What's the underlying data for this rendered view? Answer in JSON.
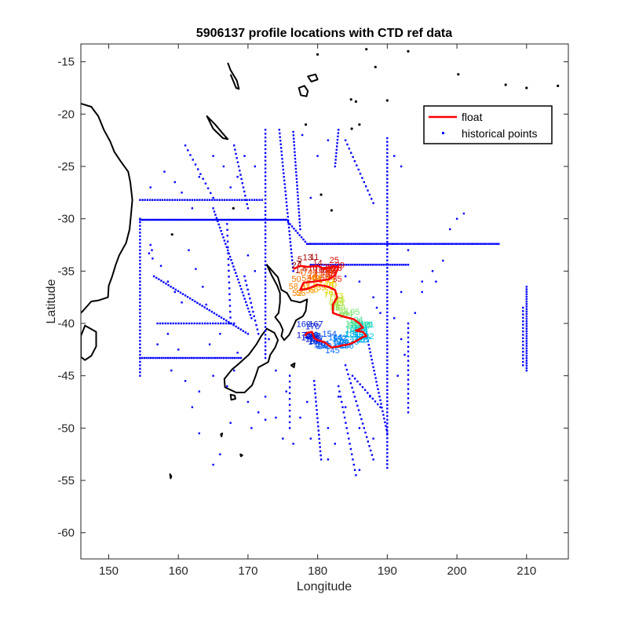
{
  "chart_data": {
    "type": "scatter",
    "title": "5906137 profile locations with CTD ref data",
    "xlabel": "Longitude",
    "ylabel": "Latitude",
    "xlim": [
      146,
      216
    ],
    "ylim": [
      -62.5,
      -13.3
    ],
    "x_ticks": [
      150,
      160,
      170,
      180,
      190,
      200,
      210
    ],
    "y_ticks": [
      -15,
      -20,
      -25,
      -30,
      -35,
      -40,
      -45,
      -50,
      -55,
      -60
    ],
    "grid": false,
    "legend_position": "top-right",
    "colors": {
      "float": "#ff0000",
      "historical": "#0000ff",
      "coast": "#000000"
    },
    "series": [
      {
        "name": "float",
        "style": "line",
        "x": [
          176.5,
          177.5,
          178.5,
          180,
          181,
          182,
          183,
          182.5,
          181.5,
          180.5,
          179.5,
          178,
          177.5,
          178.5,
          180,
          181.5,
          182.5,
          182.8,
          182.2,
          182.2,
          183,
          184,
          185.2,
          186,
          186.5,
          185.5,
          186.5,
          187,
          186.5,
          185.5,
          184.5,
          183.5,
          183,
          182,
          181,
          180,
          179.5,
          179.2,
          178.5,
          178.2
        ],
        "y": [
          -34.8,
          -34.5,
          -34.6,
          -34.5,
          -34.8,
          -34.6,
          -34.6,
          -35.4,
          -35.8,
          -35.9,
          -36,
          -36.1,
          -36.8,
          -36.7,
          -36.3,
          -36.5,
          -36.8,
          -37.5,
          -38.2,
          -39,
          -39.2,
          -39.4,
          -39.6,
          -40,
          -40.4,
          -40.7,
          -40.8,
          -41.2,
          -41.3,
          -41.7,
          -42,
          -42.1,
          -42.2,
          -42.3,
          -41.8,
          -41.6,
          -41.4,
          -40.8,
          -40.9,
          -41.2
        ]
      },
      {
        "name": "historical points",
        "style": "dots",
        "groups": [
          {
            "x0": 154.5,
            "y0": -30.1,
            "x1": 175.5,
            "y1": -30.1,
            "n": 90
          },
          {
            "x0": 175.5,
            "y0": -30.1,
            "x1": 178.5,
            "y1": -32.4,
            "n": 12
          },
          {
            "x0": 178.5,
            "y0": -32.4,
            "x1": 206,
            "y1": -32.4,
            "n": 100
          },
          {
            "x0": 154.5,
            "y0": -28.2,
            "x1": 172,
            "y1": -28.2,
            "n": 50
          },
          {
            "x0": 154.5,
            "y0": -43.3,
            "x1": 169,
            "y1": -43.3,
            "n": 48
          },
          {
            "x0": 157,
            "y0": -40,
            "x1": 168,
            "y1": -40,
            "n": 30
          },
          {
            "x0": 154.5,
            "y0": -30,
            "x1": 154.5,
            "y1": -45,
            "n": 46
          },
          {
            "x0": 172.5,
            "y0": -21.5,
            "x1": 172.5,
            "y1": -43.3,
            "n": 60
          },
          {
            "x0": 190,
            "y0": -22.3,
            "x1": 190,
            "y1": -53.8,
            "n": 90
          },
          {
            "x0": 174.5,
            "y0": -21.5,
            "x1": 176.5,
            "y1": -35,
            "n": 40
          },
          {
            "x0": 176.5,
            "y0": -21.7,
            "x1": 177.5,
            "y1": -31,
            "n": 30
          },
          {
            "x0": 183,
            "y0": -21.5,
            "x1": 182.5,
            "y1": -25,
            "n": 12
          },
          {
            "x0": 184,
            "y0": -22.5,
            "x1": 188,
            "y1": -28.5,
            "n": 16
          },
          {
            "x0": 179,
            "y0": -34.4,
            "x1": 193,
            "y1": -34.4,
            "n": 45
          },
          {
            "x0": 210,
            "y0": -36.5,
            "x1": 210,
            "y1": -44.5,
            "n": 35
          },
          {
            "x0": 209.5,
            "y0": -38.5,
            "x1": 209.5,
            "y1": -44,
            "n": 18
          },
          {
            "x0": 156.5,
            "y0": -35.5,
            "x1": 170,
            "y1": -41,
            "n": 40
          },
          {
            "x0": 165,
            "y0": -29,
            "x1": 170.5,
            "y1": -39.5,
            "n": 35
          },
          {
            "x0": 161,
            "y0": -23,
            "x1": 165,
            "y1": -28,
            "n": 12
          },
          {
            "x0": 168,
            "y0": -23,
            "x1": 170,
            "y1": -29,
            "n": 16
          },
          {
            "x0": 185,
            "y0": -45,
            "x1": 189,
            "y1": -48,
            "n": 12
          },
          {
            "x0": 184,
            "y0": -44,
            "x1": 188,
            "y1": -53,
            "n": 22
          },
          {
            "x0": 187,
            "y0": -41,
            "x1": 190,
            "y1": -50.5,
            "n": 28
          },
          {
            "x0": 183,
            "y0": -46,
            "x1": 185.5,
            "y1": -54.5,
            "n": 18
          },
          {
            "x0": 179.5,
            "y0": -45.5,
            "x1": 180.5,
            "y1": -53,
            "n": 20
          },
          {
            "x0": 176,
            "y0": -45,
            "x1": 176,
            "y1": -50,
            "n": 10
          },
          {
            "x0": 193,
            "y0": -40,
            "x1": 193,
            "y1": -48.5,
            "n": 20
          },
          {
            "x0": 169.5,
            "y0": -35.5,
            "x1": 171.5,
            "y1": -41,
            "n": 14
          },
          {
            "x0": 167,
            "y0": -30.5,
            "x1": 167.5,
            "y1": -40,
            "n": 18
          }
        ],
        "points": [
          [
            156,
            -32.5
          ],
          [
            156.2,
            -33
          ],
          [
            155.8,
            -33.3
          ],
          [
            156.3,
            -33.8
          ],
          [
            157.5,
            -34.5
          ],
          [
            158.5,
            -36
          ],
          [
            159.5,
            -37
          ],
          [
            160.5,
            -38
          ],
          [
            161.5,
            -33
          ],
          [
            162.5,
            -34.8
          ],
          [
            163.5,
            -36.5
          ],
          [
            164,
            -38.2
          ],
          [
            156,
            -27
          ],
          [
            158,
            -25.5
          ],
          [
            159.5,
            -26.5
          ],
          [
            160.5,
            -27.5
          ],
          [
            162,
            -29
          ],
          [
            163,
            -26
          ],
          [
            165,
            -24
          ],
          [
            166.5,
            -25
          ],
          [
            167.5,
            -27
          ],
          [
            168.5,
            -26
          ],
          [
            169.5,
            -24
          ],
          [
            171,
            -25
          ],
          [
            159,
            -44.5
          ],
          [
            161,
            -45.5
          ],
          [
            163,
            -46.5
          ],
          [
            165,
            -45
          ],
          [
            167,
            -46
          ],
          [
            168,
            -44.5
          ],
          [
            170,
            -47.5
          ],
          [
            171.5,
            -48.5
          ],
          [
            172.5,
            -47
          ],
          [
            174,
            -49
          ],
          [
            175,
            -51
          ],
          [
            176.5,
            -51.5
          ],
          [
            177.5,
            -49
          ],
          [
            178.5,
            -47.5
          ],
          [
            179,
            -51
          ],
          [
            181.5,
            -50
          ],
          [
            182.5,
            -51.5
          ],
          [
            181.5,
            -53
          ],
          [
            183,
            -47
          ],
          [
            184,
            -48
          ],
          [
            187.5,
            -47
          ],
          [
            186,
            -50
          ],
          [
            188,
            -51
          ],
          [
            186,
            -54
          ],
          [
            192,
            -41.5
          ],
          [
            192.5,
            -43
          ],
          [
            191.5,
            -45
          ],
          [
            194,
            -39
          ],
          [
            195,
            -37
          ],
          [
            197,
            -36
          ],
          [
            199,
            -31
          ],
          [
            200,
            -30
          ],
          [
            201,
            -29.5
          ],
          [
            191,
            -24
          ],
          [
            192,
            -25
          ],
          [
            193,
            -33
          ],
          [
            195,
            -36
          ],
          [
            196.5,
            -35
          ],
          [
            198,
            -34
          ],
          [
            166,
            -52.5
          ],
          [
            165,
            -53.5
          ],
          [
            163,
            -50.5
          ],
          [
            162,
            -48
          ],
          [
            167.5,
            -49.5
          ],
          [
            170.5,
            -50
          ],
          [
            172.5,
            -49.2
          ],
          [
            157,
            -42
          ],
          [
            158.5,
            -41
          ],
          [
            160,
            -42.5
          ],
          [
            164.5,
            -42
          ],
          [
            166,
            -41
          ],
          [
            168.5,
            -42.8
          ],
          [
            170,
            -33.5
          ],
          [
            171,
            -35
          ],
          [
            173,
            -41.5
          ],
          [
            174,
            -44.5
          ],
          [
            175.5,
            -46.5
          ],
          [
            184,
            -35.5
          ],
          [
            186,
            -36
          ],
          [
            188,
            -37.5
          ],
          [
            188.5,
            -38.5
          ],
          [
            189,
            -39
          ],
          [
            191,
            -39.5
          ],
          [
            192,
            -37
          ],
          [
            177.8,
            -22
          ],
          [
            181.5,
            -22.5
          ],
          [
            180,
            -24
          ],
          [
            179,
            -28
          ]
        ]
      }
    ],
    "annotations": "profile-number labels around the float track, colored by profile order (dark red to blue)"
  },
  "legend": {
    "float_label": "float",
    "historical_label": "historical points"
  }
}
